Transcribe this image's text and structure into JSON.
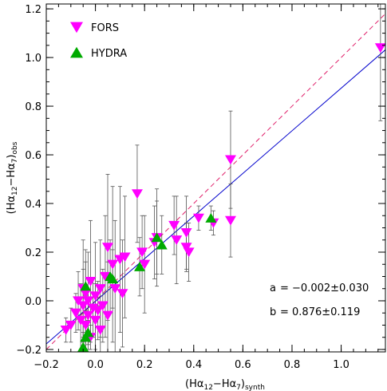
{
  "chart_data": {
    "type": "scatter",
    "xlabel": "(Hα12−Hα7)synth",
    "xlabel_parts": {
      "main": "(Hα",
      "sub1": "12",
      "mid": "−Hα",
      "sub2": "7",
      "close": ")",
      "sub3": "synth"
    },
    "ylabel_parts": {
      "main": "(Hα",
      "sub1": "12",
      "mid": "−Hα",
      "sub2": "7",
      "close": ")",
      "sub3": "obs"
    },
    "xlim": [
      -0.2,
      1.18
    ],
    "ylim": [
      -0.21,
      1.22
    ],
    "x_ticks": [
      -0.2,
      0.0,
      0.2,
      0.4,
      0.6,
      0.8,
      1.0
    ],
    "x_tick_labels": [
      "−0.2",
      "0.0",
      "0.2",
      "0.4",
      "0.6",
      "0.8",
      "1.0"
    ],
    "y_ticks": [
      -0.2,
      0.0,
      0.2,
      0.4,
      0.6,
      0.8,
      1.0,
      1.2
    ],
    "y_tick_labels": [
      "−0.2",
      "0.0",
      "0.2",
      "0.4",
      "0.6",
      "0.8",
      "1.0",
      "1.2"
    ],
    "legend": {
      "placement": "top-left",
      "entries": [
        {
          "name": "FORS",
          "marker": "triangle-down",
          "color": "#ff00ff"
        },
        {
          "name": "HYDRA",
          "marker": "triangle-up",
          "color": "#00aa00"
        }
      ]
    },
    "annotations": [
      {
        "label": "a",
        "text": "=  −0.002±0.030"
      },
      {
        "label": "b",
        "text": "=  0.876±0.119"
      }
    ],
    "lines": [
      {
        "name": "one-to-one",
        "style": "dashed",
        "color": "#e0206a",
        "slope": 1.0,
        "intercept": 0.0
      },
      {
        "name": "fit",
        "style": "solid",
        "color": "#0000cc",
        "slope": 0.876,
        "intercept": -0.002
      }
    ],
    "series": [
      {
        "name": "FORS",
        "color": "#ff00ff",
        "marker": "triangle-down",
        "points": [
          {
            "x": -0.12,
            "y": -0.12,
            "err": 0.05
          },
          {
            "x": -0.1,
            "y": -0.1,
            "err": 0.07
          },
          {
            "x": -0.08,
            "y": -0.05,
            "err": 0.08
          },
          {
            "x": -0.07,
            "y": 0.0,
            "err": 0.12
          },
          {
            "x": -0.06,
            "y": -0.08,
            "err": 0.15
          },
          {
            "x": -0.05,
            "y": 0.05,
            "err": 0.2
          },
          {
            "x": -0.05,
            "y": -0.02,
            "err": 0.15
          },
          {
            "x": -0.04,
            "y": -0.1,
            "err": 0.12
          },
          {
            "x": -0.04,
            "y": 0.03,
            "err": 0.18
          },
          {
            "x": -0.03,
            "y": -0.06,
            "err": 0.1
          },
          {
            "x": -0.03,
            "y": 0.0,
            "err": 0.2
          },
          {
            "x": -0.02,
            "y": 0.08,
            "err": 0.25
          },
          {
            "x": -0.02,
            "y": -0.15,
            "err": 0.05
          },
          {
            "x": -0.01,
            "y": -0.03,
            "err": 0.12
          },
          {
            "x": 0.0,
            "y": 0.02,
            "err": 0.22
          },
          {
            "x": 0.0,
            "y": -0.08,
            "err": 0.15
          },
          {
            "x": 0.01,
            "y": -0.04,
            "err": 0.12
          },
          {
            "x": 0.02,
            "y": -0.12,
            "err": 0.1
          },
          {
            "x": 0.02,
            "y": 0.05,
            "err": 0.2
          },
          {
            "x": 0.03,
            "y": -0.02,
            "err": 0.15
          },
          {
            "x": 0.04,
            "y": 0.1,
            "err": 0.25
          },
          {
            "x": 0.05,
            "y": -0.06,
            "err": 0.22
          },
          {
            "x": 0.05,
            "y": 0.22,
            "err": 0.3
          },
          {
            "x": 0.07,
            "y": 0.15,
            "err": 0.32
          },
          {
            "x": 0.08,
            "y": 0.05,
            "err": 0.28
          },
          {
            "x": 0.1,
            "y": 0.17,
            "err": 0.3
          },
          {
            "x": 0.11,
            "y": 0.03,
            "err": 0.22
          },
          {
            "x": 0.12,
            "y": 0.18,
            "err": 0.25
          },
          {
            "x": 0.17,
            "y": 0.44,
            "err": 0.2
          },
          {
            "x": 0.19,
            "y": 0.2,
            "err": 0.15
          },
          {
            "x": 0.2,
            "y": 0.15,
            "err": 0.2
          },
          {
            "x": 0.24,
            "y": 0.24,
            "err": 0.15
          },
          {
            "x": 0.25,
            "y": 0.26,
            "err": 0.15
          },
          {
            "x": 0.32,
            "y": 0.31,
            "err": 0.12
          },
          {
            "x": 0.33,
            "y": 0.25,
            "err": 0.18
          },
          {
            "x": 0.37,
            "y": 0.28,
            "err": 0.15
          },
          {
            "x": 0.37,
            "y": 0.22,
            "err": 0.1
          },
          {
            "x": 0.38,
            "y": 0.2,
            "err": 0.12
          },
          {
            "x": 0.42,
            "y": 0.34,
            "err": 0.05
          },
          {
            "x": 0.48,
            "y": 0.32,
            "err": 0.05
          },
          {
            "x": 0.55,
            "y": 0.58,
            "err": 0.2
          },
          {
            "x": 0.55,
            "y": 0.33,
            "err": 0.15
          },
          {
            "x": 1.16,
            "y": 1.04,
            "err": 0.3
          }
        ]
      },
      {
        "name": "HYDRA",
        "color": "#00aa00",
        "marker": "triangle-up",
        "points": [
          {
            "x": -0.05,
            "y": -0.19,
            "err": 0.06
          },
          {
            "x": -0.04,
            "y": -0.15,
            "err": 0.05
          },
          {
            "x": -0.03,
            "y": -0.13,
            "err": 0.05
          },
          {
            "x": -0.04,
            "y": 0.06,
            "err": 0.1
          },
          {
            "x": 0.06,
            "y": 0.1,
            "err": 0.15
          },
          {
            "x": 0.07,
            "y": 0.09,
            "err": 0.12
          },
          {
            "x": 0.18,
            "y": 0.14,
            "err": 0.12
          },
          {
            "x": 0.25,
            "y": 0.26,
            "err": 0.2
          },
          {
            "x": 0.27,
            "y": 0.23,
            "err": 0.12
          },
          {
            "x": 0.47,
            "y": 0.34,
            "err": 0.05
          }
        ]
      }
    ]
  }
}
